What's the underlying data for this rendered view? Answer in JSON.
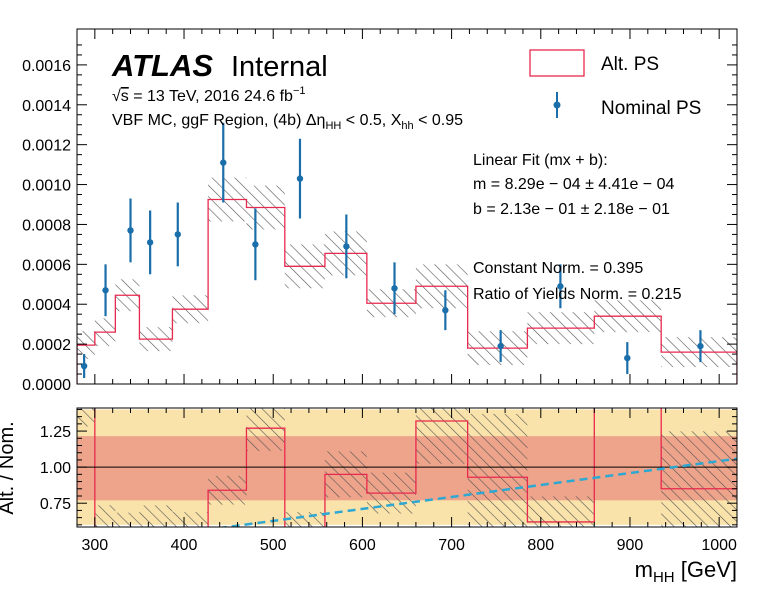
{
  "chart_data": [
    {
      "type": "histogram",
      "title": "",
      "xlabel": "",
      "ylabel": "",
      "bin_edges": [
        280,
        300,
        323,
        350,
        387,
        427,
        470,
        513,
        558,
        605,
        660,
        718,
        785,
        860,
        935,
        1020
      ],
      "ylim": [
        0,
        0.00178
      ],
      "yticks": [
        "0.0000",
        "0.0002",
        "0.0004",
        "0.0006",
        "0.0008",
        "0.0010",
        "0.0012",
        "0.0014",
        "0.0016"
      ],
      "series": [
        {
          "name": "Alt. PS",
          "color": "#e8294e",
          "kind": "step",
          "values": [
            0.000195,
            0.00026,
            0.000445,
            0.000225,
            0.000375,
            0.000925,
            0.000885,
            0.00059,
            0.000655,
            0.000405,
            0.00049,
            0.00018,
            0.00028,
            0.00034,
            0.00016
          ],
          "hatched_uncertainty": [
            7e-05,
            7e-05,
            8e-05,
            6e-05,
            7e-05,
            0.00011,
            0.00011,
            0.00011,
            0.00011,
            7e-05,
            0.00011,
            8.5e-05,
            8e-05,
            8e-05,
            7.5e-05
          ]
        },
        {
          "name": "Nominal PS",
          "color": "#1a6eaa",
          "kind": "errorbar",
          "x": [
            288,
            312,
            340,
            362,
            393,
            444,
            480,
            530,
            582,
            636,
            693,
            755,
            822,
            897,
            979
          ],
          "y": [
            9e-05,
            0.00047,
            0.00077,
            0.00071,
            0.00075,
            0.00111,
            0.0007,
            0.00103,
            0.00069,
            0.00048,
            0.00037,
            0.00019,
            0.00049,
            0.00013,
            0.00019
          ],
          "yerr": [
            6e-05,
            0.00013,
            0.00016,
            0.00016,
            0.00016,
            0.0002,
            0.00018,
            0.0002,
            0.00016,
            0.00013,
            0.0001,
            8e-05,
            0.00011,
            8e-05,
            8e-05
          ]
        }
      ],
      "legend": [
        "Alt. PS",
        "Nominal PS"
      ],
      "legend_position": "top-right"
    },
    {
      "type": "histogram-ratio",
      "title": "",
      "xlabel": "m_HH [GeV]",
      "ylabel": "Alt. / Nom.",
      "bin_edges": [
        280,
        300,
        323,
        350,
        387,
        427,
        470,
        513,
        558,
        605,
        660,
        718,
        785,
        860,
        935,
        1020
      ],
      "xlim": [
        280,
        1020
      ],
      "ylim": [
        0.585,
        1.41
      ],
      "xticks": [
        300,
        400,
        500,
        600,
        700,
        800,
        900,
        1000
      ],
      "yticks": [
        "0.75",
        "1.00",
        "1.25"
      ],
      "ratio_values": [
        2.0,
        0.58,
        0.58,
        0.58,
        0.58,
        0.84,
        1.27,
        0.58,
        0.95,
        0.82,
        1.32,
        0.93,
        0.62,
        2.0,
        0.85
      ],
      "bands": [
        {
          "name": "outer band",
          "range": [
            0.6,
            1.4
          ],
          "color": "#fae3aa"
        },
        {
          "name": "inner band",
          "range": [
            0.77,
            1.215
          ],
          "color": "#eea48a"
        }
      ],
      "reference_line": 1.0,
      "linear_fit": {
        "m": 0.000829,
        "b": 0.213,
        "color": "#2ea8d2"
      }
    }
  ],
  "labels": {
    "atlas": "ATLAS",
    "internal": "Internal",
    "sqrt_s": "s",
    "energy_tail": " = 13 TeV, 2016 24.6 fb",
    "energy_sup": "−1",
    "region_pre": "VBF MC, ggF Region, (4b) Δη",
    "region_sub1": "HH",
    "region_mid": " < 0.5, X",
    "region_sub2": "hh",
    "region_post": " < 0.95",
    "fit_title": "Linear Fit (mx + b):",
    "fit_m": "m = 8.29e − 04 ± 4.41e − 04",
    "fit_b": "b = 2.13e − 01 ± 2.18e − 01",
    "const_norm": "Constant Norm. = 0.395",
    "ratio_norm": "Ratio of Yields Norm. = 0.215",
    "xlabel_main": "m",
    "xlabel_sub": "HH",
    "xlabel_unit": " [GeV]",
    "ylabel_ratio": "Alt. / Nom."
  },
  "colors": {
    "alt": "#e8294e",
    "nominal": "#1a6eaa",
    "hatch": "#555555",
    "fit": "#2ea8d2",
    "band_outer": "#fae3aa",
    "band_inner": "#eea48a"
  }
}
